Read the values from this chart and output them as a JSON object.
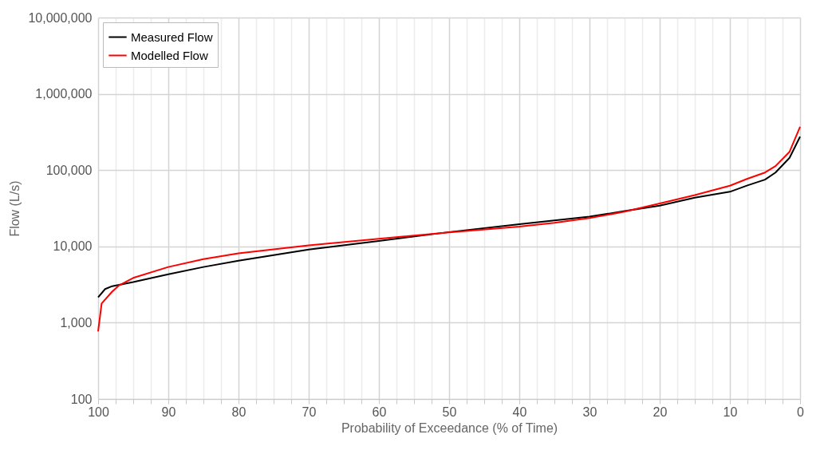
{
  "chart_data": {
    "type": "line",
    "xlabel": "Probability of Exceedance (% of Time)",
    "ylabel": "Flow (L/s)",
    "log": "y",
    "grid": true,
    "legend": "top left",
    "line_style": "solid",
    "marker": "none",
    "xlim": [
      100,
      0
    ],
    "xticks": [
      100,
      {
        "value": 97.5,
        "label": null
      },
      {
        "value": 95,
        "label": null
      },
      {
        "value": 92.5,
        "label": null
      },
      90,
      {
        "value": 87.5,
        "label": null
      },
      {
        "value": 85,
        "label": null
      },
      {
        "value": 82.5,
        "label": null
      },
      80,
      {
        "value": 77.5,
        "label": null
      },
      {
        "value": 75,
        "label": null
      },
      {
        "value": 72.5,
        "label": null
      },
      70,
      {
        "value": 67.5,
        "label": null
      },
      {
        "value": 65,
        "label": null
      },
      {
        "value": 62.5,
        "label": null
      },
      60,
      {
        "value": 57.5,
        "label": null
      },
      {
        "value": 55,
        "label": null
      },
      {
        "value": 52.5,
        "label": null
      },
      50,
      {
        "value": 47.5,
        "label": null
      },
      {
        "value": 45,
        "label": null
      },
      {
        "value": 42.5,
        "label": null
      },
      40,
      {
        "value": 37.5,
        "label": null
      },
      {
        "value": 35,
        "label": null
      },
      {
        "value": 32.5,
        "label": null
      },
      30,
      {
        "value": 27.5,
        "label": null
      },
      {
        "value": 25,
        "label": null
      },
      {
        "value": 22.5,
        "label": null
      },
      20,
      {
        "value": 17.5,
        "label": null
      },
      {
        "value": 15,
        "label": null
      },
      {
        "value": 12.5,
        "label": null
      },
      10,
      {
        "value": 7.5,
        "label": null
      },
      {
        "value": 5,
        "label": null
      },
      {
        "value": 2.5,
        "label": null
      },
      0
    ],
    "ylim": [
      100,
      10000000
    ],
    "yticks": [
      100,
      {
        "value": 1000,
        "label": "1,000"
      },
      {
        "value": 10000,
        "label": "10,000"
      },
      {
        "value": 100000,
        "label": "100,000"
      },
      {
        "value": 1000000,
        "label": "1,000,000"
      },
      {
        "value": 10000000,
        "label": "10,000,000"
      }
    ],
    "series": [
      {
        "name": "Measured Flow",
        "color": "#000000",
        "x": [
          100,
          99,
          98,
          95,
          90,
          85,
          80,
          70,
          60,
          50,
          40,
          30,
          25,
          20,
          15,
          10,
          7.5,
          5,
          3.5,
          1.5,
          0
        ],
        "values": [
          2150,
          2760,
          3010,
          3400,
          4310,
          5370,
          6500,
          9100,
          11800,
          15400,
          19500,
          24500,
          29000,
          34200,
          43500,
          52000,
          63000,
          75000,
          93000,
          145000,
          275000
        ]
      },
      {
        "name": "Modelled Flow",
        "color": "#ff0000",
        "x": [
          100,
          99.5,
          98,
          97,
          95,
          90,
          85,
          80,
          70,
          60,
          50,
          40,
          35,
          30,
          25,
          20,
          15,
          10,
          7.5,
          5,
          3.5,
          1.5,
          0
        ],
        "values": [
          770,
          1780,
          2550,
          3090,
          3860,
          5370,
          6800,
          8100,
          10300,
          12600,
          15300,
          18200,
          20400,
          23500,
          28500,
          36500,
          47000,
          62400,
          77000,
          93000,
          113000,
          174000,
          370000
        ]
      }
    ]
  }
}
